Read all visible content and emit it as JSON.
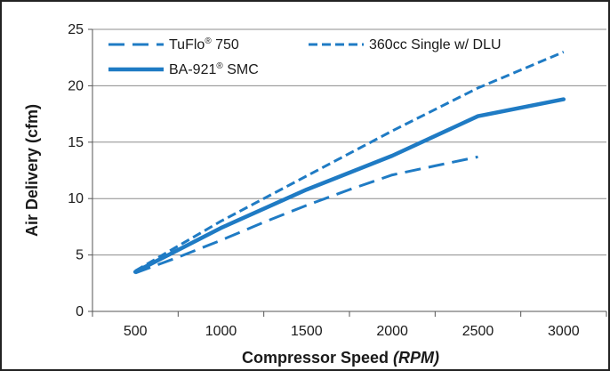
{
  "chart_data": {
    "type": "line",
    "title": "",
    "xlabel": "Compressor Speed",
    "xlabel_unit": "(RPM)",
    "ylabel": "Air Delivery (cfm)",
    "x_ticks": [
      "500",
      "1000",
      "1500",
      "2000",
      "2500",
      "3000"
    ],
    "y_ticks": [
      "0",
      "5",
      "10",
      "15",
      "20",
      "25"
    ],
    "xlim": [
      250,
      3250
    ],
    "ylim": [
      0,
      25
    ],
    "grid": "horizontal",
    "legend_position": "top-left",
    "series": [
      {
        "name": "TuFlo",
        "name_suffix": "750",
        "registered": "®",
        "style": "dashed-long",
        "color": "#1f7bc4",
        "x": [
          500,
          750,
          1000,
          1250,
          1500,
          1750,
          2000,
          2250,
          2500
        ],
        "y": [
          3.4,
          4.8,
          6.3,
          7.9,
          9.4,
          10.8,
          12.1,
          12.9,
          13.7
        ]
      },
      {
        "name": "360cc Single w/ DLU",
        "registered": "",
        "style": "dashed-short",
        "color": "#1f7bc4",
        "x": [
          500,
          1000,
          1500,
          2000,
          2500,
          3000
        ],
        "y": [
          3.6,
          8.0,
          12.0,
          16.0,
          19.8,
          23.0
        ]
      },
      {
        "name": "BA-921",
        "name_suffix": "SMC",
        "registered": "®",
        "style": "solid",
        "color": "#1f7bc4",
        "x": [
          500,
          1000,
          1500,
          2000,
          2500,
          3000
        ],
        "y": [
          3.5,
          7.4,
          10.8,
          13.8,
          17.3,
          18.8
        ]
      }
    ]
  }
}
